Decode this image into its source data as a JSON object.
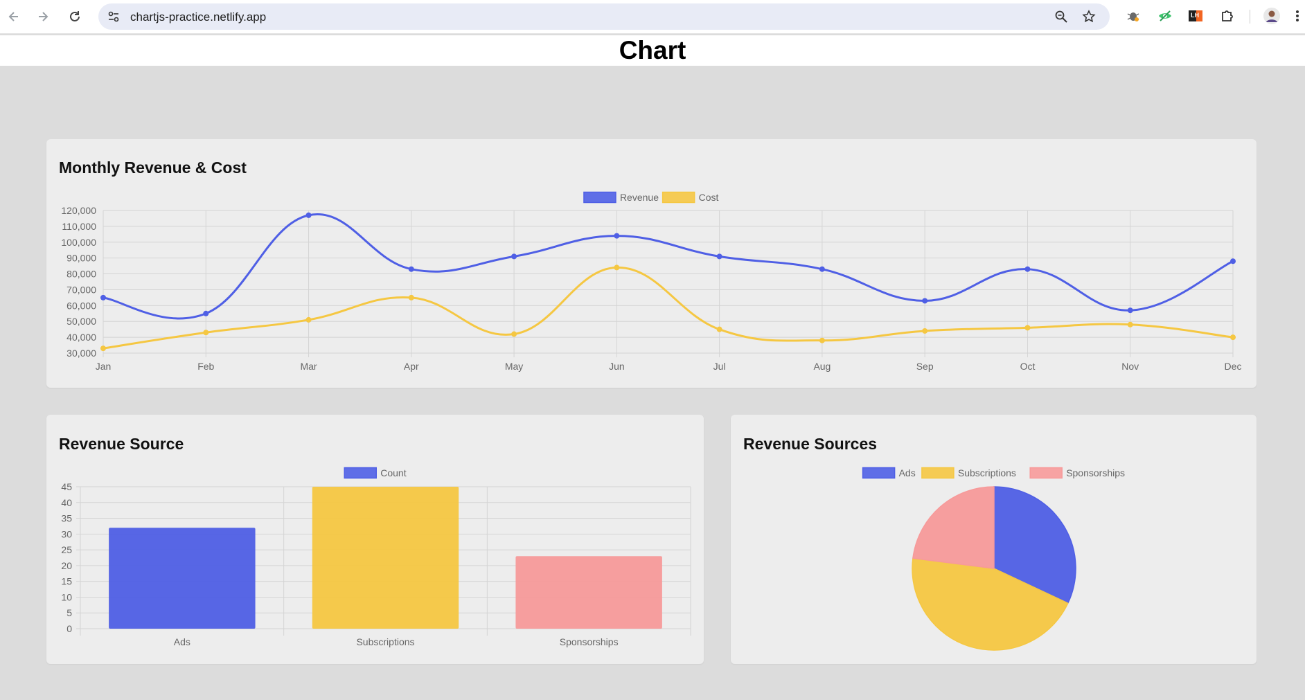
{
  "browser": {
    "url": "chartjs-practice.netlify.app",
    "icons": [
      "back-arrow-icon",
      "forward-arrow-icon",
      "reload-icon",
      "site-settings-icon",
      "zoom-icon",
      "bookmark-star-icon",
      "extension-bug-icon",
      "extension-eye-icon",
      "extension-lh-icon",
      "extensions-puzzle-icon",
      "profile-avatar-icon",
      "menu-kebab-icon"
    ],
    "lh_label": "LH"
  },
  "page": {
    "title": "Chart"
  },
  "colors": {
    "blue": "#4f5fe5",
    "yellow": "#f5c742",
    "pink": "#f79a9a",
    "grid": "#d4d4d4",
    "tick": "#666666"
  },
  "chart_data": [
    {
      "type": "line",
      "title": "Monthly Revenue & Cost",
      "categories": [
        "Jan",
        "Feb",
        "Mar",
        "Apr",
        "May",
        "Jun",
        "Jul",
        "Aug",
        "Sep",
        "Oct",
        "Nov",
        "Dec"
      ],
      "series": [
        {
          "name": "Revenue",
          "color": "#4f5fe5",
          "values": [
            65000,
            55000,
            117000,
            83000,
            91000,
            104000,
            91000,
            83000,
            63000,
            83000,
            57000,
            88000
          ]
        },
        {
          "name": "Cost",
          "color": "#f5c742",
          "values": [
            33000,
            43000,
            51000,
            65000,
            42000,
            84000,
            45000,
            38000,
            44000,
            46000,
            48000,
            40000
          ]
        }
      ],
      "ylim": [
        30000,
        120000
      ],
      "yticks": [
        {
          "v": 30000,
          "label": "30,000"
        },
        {
          "v": 40000,
          "label": "40,000"
        },
        {
          "v": 50000,
          "label": "50,000"
        },
        {
          "v": 60000,
          "label": "60,000"
        },
        {
          "v": 70000,
          "label": "70,000"
        },
        {
          "v": 80000,
          "label": "80,000"
        },
        {
          "v": 90000,
          "label": "90,000"
        },
        {
          "v": 100000,
          "label": "100,000"
        },
        {
          "v": 110000,
          "label": "110,000"
        },
        {
          "v": 120000,
          "label": "120,000"
        }
      ],
      "legend": "top"
    },
    {
      "type": "bar",
      "title": "Revenue Source",
      "categories": [
        "Ads",
        "Subscriptions",
        "Sponsorships"
      ],
      "series": [
        {
          "name": "Count",
          "values": [
            32,
            45,
            23
          ]
        }
      ],
      "bar_colors": [
        "#4f5fe5",
        "#f5c742",
        "#f79a9a"
      ],
      "ylim": [
        0,
        45
      ],
      "yticks": [
        {
          "v": 0,
          "label": "0"
        },
        {
          "v": 5,
          "label": "5"
        },
        {
          "v": 10,
          "label": "10"
        },
        {
          "v": 15,
          "label": "15"
        },
        {
          "v": 20,
          "label": "20"
        },
        {
          "v": 25,
          "label": "25"
        },
        {
          "v": 30,
          "label": "30"
        },
        {
          "v": 35,
          "label": "35"
        },
        {
          "v": 40,
          "label": "40"
        },
        {
          "v": 45,
          "label": "45"
        }
      ],
      "legend": "top"
    },
    {
      "type": "pie",
      "title": "Revenue Sources",
      "categories": [
        "Ads",
        "Subscriptions",
        "Sponsorships"
      ],
      "values": [
        32,
        45,
        23
      ],
      "colors": [
        "#4f5fe5",
        "#f5c742",
        "#f79a9a"
      ],
      "legend": "top"
    }
  ]
}
